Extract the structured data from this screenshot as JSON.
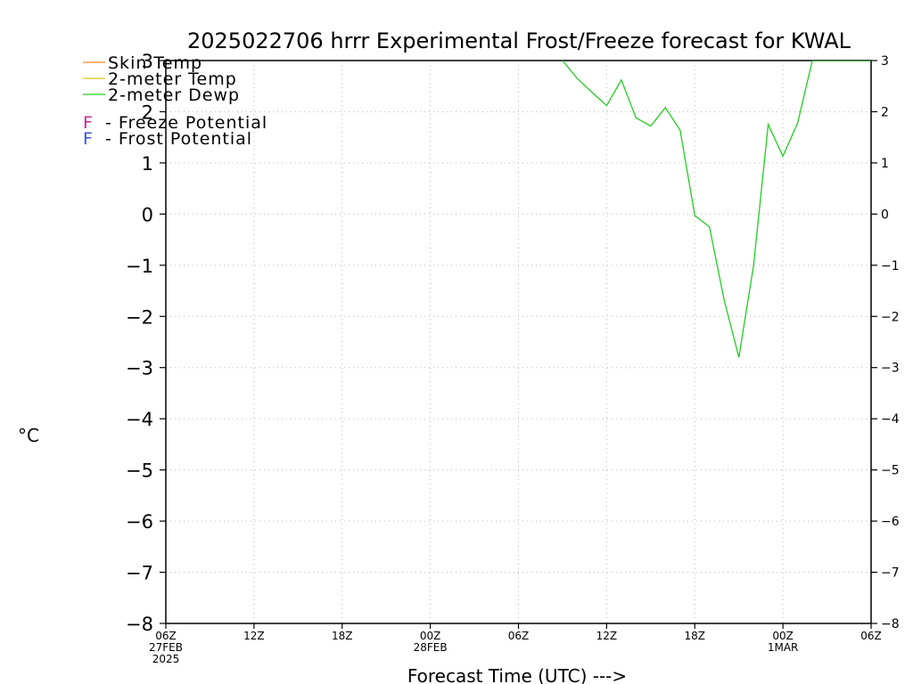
{
  "chart_data": {
    "type": "line",
    "title": "2025022706 hrrr Experimental Frost/Freeze forecast for KWAL",
    "xlabel": "Forecast Time (UTC) --->",
    "ylabel": "°C",
    "ylim": [
      -8,
      3
    ],
    "yticks": [
      3,
      2,
      1,
      0,
      -1,
      -2,
      -3,
      -4,
      -5,
      -6,
      -7,
      -8
    ],
    "xlim": [
      0,
      48
    ],
    "xticks": [
      {
        "x": 0,
        "label": "06Z",
        "sub": [
          "27FEB",
          "2025"
        ]
      },
      {
        "x": 6,
        "label": "12Z",
        "sub": []
      },
      {
        "x": 12,
        "label": "18Z",
        "sub": []
      },
      {
        "x": 18,
        "label": "00Z",
        "sub": [
          "28FEB"
        ]
      },
      {
        "x": 24,
        "label": "06Z",
        "sub": []
      },
      {
        "x": 30,
        "label": "12Z",
        "sub": []
      },
      {
        "x": 36,
        "label": "18Z",
        "sub": []
      },
      {
        "x": 42,
        "label": "00Z",
        "sub": [
          "1MAR"
        ]
      },
      {
        "x": 48,
        "label": "06Z",
        "sub": []
      }
    ],
    "grid": true,
    "legend": [
      {
        "label": "Skin Temp",
        "color": "#ff8c1a",
        "kind": "line"
      },
      {
        "label": "2-meter Temp",
        "color": "#e6c31a",
        "kind": "line"
      },
      {
        "label": "2-meter Dewp",
        "color": "#22cc22",
        "kind": "line"
      }
    ],
    "potential_legend": [
      {
        "marker": "F",
        "label": "- Freeze Potential",
        "color": "#cc2299"
      },
      {
        "marker": "F",
        "label": "- Frost Potential",
        "color": "#3355dd"
      }
    ],
    "series": [
      {
        "name": "2-meter Dewp",
        "color": "#22cc22",
        "x": [
          27,
          28,
          29,
          30,
          31,
          32,
          33,
          34,
          35,
          36,
          37,
          38,
          39,
          40,
          41,
          42,
          43,
          44,
          48
        ],
        "y": [
          3.0,
          2.65,
          2.38,
          2.12,
          2.62,
          1.88,
          1.72,
          2.08,
          1.64,
          -0.03,
          -0.25,
          -1.68,
          -2.8,
          -1.0,
          1.75,
          1.13,
          1.78,
          3.0,
          3.0
        ]
      }
    ]
  }
}
